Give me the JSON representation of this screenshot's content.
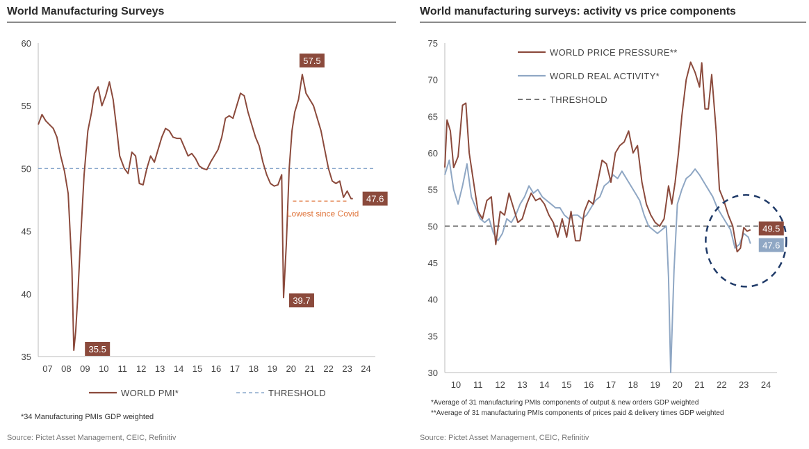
{
  "chart_data": [
    {
      "type": "line",
      "title": "World Manufacturing Surveys",
      "ylim": [
        35,
        60
      ],
      "yticks": [
        35,
        40,
        45,
        50,
        55,
        60
      ],
      "x_tick_labels": [
        "07",
        "08",
        "09",
        "10",
        "11",
        "12",
        "13",
        "14",
        "15",
        "16",
        "17",
        "18",
        "19",
        "20",
        "21",
        "22",
        "23",
        "24"
      ],
      "xlim": [
        2007,
        2025
      ],
      "threshold": 50,
      "series": [
        {
          "name": "WORLD PMI*",
          "color": "#8b4a3c",
          "x": [
            2007.0,
            2007.2,
            2007.4,
            2007.6,
            2007.8,
            2008.0,
            2008.2,
            2008.4,
            2008.6,
            2008.8,
            2008.9,
            2009.0,
            2009.1,
            2009.25,
            2009.45,
            2009.65,
            2009.85,
            2010.0,
            2010.2,
            2010.4,
            2010.6,
            2010.8,
            2011.0,
            2011.2,
            2011.35,
            2011.6,
            2011.8,
            2012.0,
            2012.2,
            2012.4,
            2012.6,
            2012.8,
            2013.0,
            2013.2,
            2013.4,
            2013.6,
            2013.8,
            2014.0,
            2014.2,
            2014.4,
            2014.6,
            2014.8,
            2015.0,
            2015.2,
            2015.4,
            2015.6,
            2015.8,
            2016.0,
            2016.2,
            2016.4,
            2016.6,
            2016.8,
            2017.0,
            2017.2,
            2017.4,
            2017.6,
            2017.8,
            2018.0,
            2018.2,
            2018.4,
            2018.6,
            2018.8,
            2019.0,
            2019.2,
            2019.4,
            2019.6,
            2019.8,
            2020.0,
            2020.1,
            2020.25,
            2020.4,
            2020.55,
            2020.7,
            2020.9,
            2021.1,
            2021.3,
            2021.5,
            2021.7,
            2021.9,
            2022.1,
            2022.3,
            2022.5,
            2022.7,
            2022.9,
            2023.1,
            2023.3,
            2023.5,
            2023.7,
            2023.8
          ],
          "y": [
            53.5,
            54.3,
            53.8,
            53.5,
            53.2,
            52.5,
            51.0,
            49.8,
            48.0,
            42.0,
            35.5,
            37.0,
            39.5,
            44.0,
            49.5,
            53.0,
            54.5,
            56.0,
            56.5,
            55.0,
            55.8,
            56.9,
            55.5,
            53.0,
            51.0,
            50.0,
            49.6,
            51.3,
            51.0,
            48.8,
            48.7,
            50.0,
            51.0,
            50.5,
            51.5,
            52.5,
            53.2,
            53.0,
            52.5,
            52.4,
            52.4,
            51.7,
            51.0,
            51.2,
            50.8,
            50.2,
            50.0,
            49.9,
            50.5,
            51.0,
            51.5,
            52.5,
            54.0,
            54.2,
            54.0,
            55.0,
            56.0,
            55.8,
            54.5,
            53.5,
            52.5,
            51.8,
            50.5,
            49.5,
            48.8,
            48.6,
            48.7,
            49.5,
            39.7,
            44.0,
            50.0,
            53.0,
            54.5,
            55.5,
            57.5,
            56.0,
            55.5,
            55.0,
            54.0,
            53.0,
            51.5,
            50.0,
            49.0,
            48.8,
            49.0,
            47.7,
            48.2,
            47.6,
            47.6
          ]
        },
        {
          "name": "THRESHOLD",
          "color": "#8aa8cc",
          "values": [
            50,
            50
          ]
        }
      ],
      "annotations": [
        {
          "text": "57.5",
          "x": 2021.1,
          "y": 57.5
        },
        {
          "text": "35.5",
          "x": 2008.9,
          "y": 35.5
        },
        {
          "text": "39.7",
          "x": 2020.1,
          "y": 39.7
        },
        {
          "text": "47.6",
          "x": 2023.8,
          "y": 47.6
        },
        {
          "text": "Lowest since Covid",
          "x": 2022.2,
          "y": 47.4
        }
      ],
      "legend": [
        {
          "label": "WORLD PMI*",
          "style": "solid",
          "color": "#8b4a3c"
        },
        {
          "label": "THRESHOLD",
          "style": "dashed",
          "color": "#8aa8cc"
        }
      ],
      "footnote": "*34 Manufacturing PMIs GDP weighted",
      "source": "Source: Pictet Asset Management, CEIC, Refinitiv"
    },
    {
      "type": "line",
      "title": "World manufacturing surveys: activity vs price components",
      "ylim": [
        30,
        75
      ],
      "yticks": [
        30,
        35,
        40,
        45,
        50,
        55,
        60,
        65,
        70,
        75
      ],
      "x_tick_labels": [
        "10",
        "11",
        "12",
        "13",
        "14",
        "15",
        "16",
        "17",
        "18",
        "19",
        "20",
        "21",
        "22",
        "23",
        "24"
      ],
      "xlim": [
        2010,
        2025
      ],
      "threshold": 50,
      "series": [
        {
          "name": "WORLD PRICE PRESSURE**",
          "color": "#8b4a3c",
          "x": [
            2010.0,
            2010.1,
            2010.25,
            2010.4,
            2010.6,
            2010.8,
            2010.95,
            2011.1,
            2011.3,
            2011.5,
            2011.7,
            2011.9,
            2012.1,
            2012.3,
            2012.5,
            2012.7,
            2012.9,
            2013.1,
            2013.3,
            2013.5,
            2013.7,
            2013.9,
            2014.1,
            2014.3,
            2014.5,
            2014.7,
            2014.9,
            2015.1,
            2015.3,
            2015.5,
            2015.7,
            2015.9,
            2016.1,
            2016.3,
            2016.5,
            2016.7,
            2016.9,
            2017.1,
            2017.3,
            2017.5,
            2017.7,
            2017.9,
            2018.1,
            2018.3,
            2018.5,
            2018.7,
            2018.9,
            2019.1,
            2019.3,
            2019.5,
            2019.7,
            2019.9,
            2020.1,
            2020.25,
            2020.4,
            2020.55,
            2020.7,
            2020.9,
            2021.1,
            2021.3,
            2021.5,
            2021.6,
            2021.75,
            2021.9,
            2022.05,
            2022.25,
            2022.4,
            2022.6,
            2022.8,
            2023.0,
            2023.2,
            2023.35,
            2023.5,
            2023.65,
            2023.8
          ],
          "y": [
            58.0,
            64.5,
            63.0,
            58.0,
            59.5,
            66.5,
            66.8,
            60.0,
            56.0,
            52.0,
            51.0,
            53.5,
            54.0,
            47.5,
            52.0,
            51.5,
            54.5,
            52.5,
            50.5,
            51.0,
            53.0,
            54.5,
            53.5,
            53.8,
            53.0,
            51.5,
            50.5,
            48.5,
            51.0,
            48.5,
            52.0,
            48.0,
            48.0,
            52.0,
            53.5,
            53.0,
            56.0,
            59.0,
            58.5,
            56.0,
            60.0,
            61.0,
            61.5,
            63.0,
            60.0,
            61.0,
            56.0,
            53.0,
            51.5,
            50.5,
            50.0,
            51.0,
            55.5,
            53.0,
            56.0,
            60.0,
            65.0,
            70.0,
            72.4,
            71.0,
            69.0,
            72.3,
            66.0,
            66.0,
            70.7,
            63.0,
            55.0,
            53.5,
            51.5,
            50.0,
            46.5,
            47.0,
            49.8,
            49.3,
            49.5
          ]
        },
        {
          "name": "WORLD REAL ACTIVITY*",
          "color": "#8fa7c4",
          "x": [
            2010.0,
            2010.2,
            2010.4,
            2010.6,
            2010.8,
            2011.0,
            2011.2,
            2011.4,
            2011.6,
            2011.8,
            2012.0,
            2012.2,
            2012.4,
            2012.6,
            2012.8,
            2013.0,
            2013.2,
            2013.4,
            2013.6,
            2013.8,
            2014.0,
            2014.2,
            2014.4,
            2014.6,
            2014.8,
            2015.0,
            2015.2,
            2015.4,
            2015.6,
            2015.8,
            2016.0,
            2016.2,
            2016.4,
            2016.6,
            2016.8,
            2017.0,
            2017.2,
            2017.4,
            2017.6,
            2017.8,
            2018.0,
            2018.2,
            2018.4,
            2018.6,
            2018.8,
            2019.0,
            2019.2,
            2019.4,
            2019.6,
            2019.8,
            2020.0,
            2020.1,
            2020.2,
            2020.35,
            2020.5,
            2020.7,
            2020.9,
            2021.1,
            2021.3,
            2021.5,
            2021.7,
            2021.9,
            2022.1,
            2022.3,
            2022.5,
            2022.7,
            2022.9,
            2023.1,
            2023.3,
            2023.5,
            2023.7,
            2023.8
          ],
          "y": [
            57.0,
            59.0,
            55.0,
            53.0,
            55.5,
            58.5,
            54.0,
            52.5,
            51.0,
            50.5,
            51.0,
            49.0,
            48.0,
            49.0,
            51.0,
            50.5,
            51.5,
            53.0,
            54.0,
            55.5,
            54.5,
            55.0,
            54.0,
            53.5,
            53.0,
            52.5,
            52.5,
            51.5,
            51.0,
            51.5,
            51.5,
            51.0,
            51.5,
            52.5,
            53.5,
            54.0,
            55.5,
            56.0,
            57.0,
            56.5,
            57.5,
            56.5,
            55.5,
            54.5,
            53.5,
            51.5,
            50.0,
            49.5,
            49.0,
            49.5,
            50.0,
            43.0,
            30.0,
            44.0,
            53.0,
            55.0,
            56.5,
            57.0,
            57.8,
            57.0,
            56.0,
            55.0,
            54.0,
            52.5,
            51.5,
            50.5,
            49.5,
            47.0,
            47.5,
            49.0,
            48.5,
            47.6
          ]
        },
        {
          "name": "THRESHOLD",
          "color": "#666666",
          "values": [
            50,
            50
          ]
        }
      ],
      "annotations": [
        {
          "text": "49.5",
          "x": 2023.8,
          "y": 49.5
        },
        {
          "text": "47.6",
          "x": 2023.8,
          "y": 47.6
        }
      ],
      "legend": [
        {
          "label": "WORLD PRICE PRESSURE**",
          "style": "solid",
          "color": "#8b4a3c"
        },
        {
          "label": "WORLD REAL ACTIVITY*",
          "style": "solid",
          "color": "#8fa7c4"
        },
        {
          "label": "THRESHOLD",
          "style": "dashed",
          "color": "#666666"
        }
      ],
      "footnotes": [
        "*Average of 31 manufacturing PMIs components of output & new orders GDP weighted",
        "**Average of 31 manufacturing PMIs components of prices paid & delivery times GDP weighted"
      ],
      "source": "Source: Pictet Asset Management, CEIC, Refinitiv"
    }
  ]
}
